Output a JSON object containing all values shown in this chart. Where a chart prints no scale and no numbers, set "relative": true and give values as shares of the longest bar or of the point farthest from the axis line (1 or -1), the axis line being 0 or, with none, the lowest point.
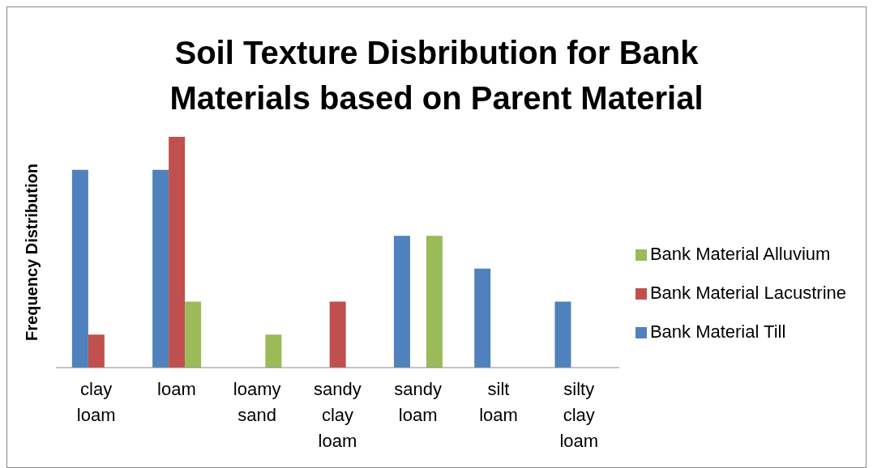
{
  "chart_data": {
    "type": "bar",
    "title": "Soil Texture Disbribution for Bank Materials based on Parent Material",
    "ylabel": "Frequency Distribution",
    "relative": true,
    "legend": "right",
    "grid": false,
    "categories": [
      "clay loam",
      "loam",
      "loamy sand",
      "sandy clay loam",
      "sandy loam",
      "silt loam",
      "silty clay loam"
    ],
    "series": [
      {
        "name": "Bank Material Till",
        "color": "#4f81bd",
        "values": [
          0.857,
          0.857,
          null,
          null,
          0.571,
          0.429,
          0.286
        ]
      },
      {
        "name": "Bank Material Lacustrine",
        "color": "#c0504d",
        "values": [
          0.143,
          1,
          null,
          0.286,
          null,
          null,
          null
        ]
      },
      {
        "name": "Bank Material Alluvium",
        "color": "#9bbb59",
        "values": [
          null,
          0.286,
          0.143,
          null,
          0.571,
          null,
          null
        ]
      }
    ]
  }
}
